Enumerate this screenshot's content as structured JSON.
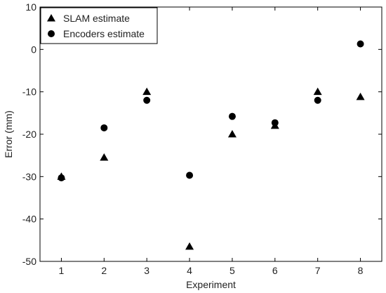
{
  "chart_data": {
    "type": "scatter",
    "title": "",
    "xlabel": "Experiment",
    "ylabel": "Error (mm)",
    "xlim": [
      0.5,
      8.5
    ],
    "ylim": [
      -50,
      10
    ],
    "xticks": [
      1,
      2,
      3,
      4,
      5,
      6,
      7,
      8
    ],
    "yticks": [
      10,
      0,
      -10,
      -20,
      -30,
      -40,
      -50
    ],
    "grid": false,
    "legend": "top-left",
    "series": [
      {
        "name": "SLAM estimate",
        "marker": "triangle",
        "color": "#000000",
        "x": [
          1,
          2,
          3,
          4,
          5,
          6,
          7,
          8
        ],
        "y": [
          -30.0,
          -25.5,
          -10.0,
          -46.5,
          -20.0,
          -18.0,
          -10.0,
          -11.2
        ]
      },
      {
        "name": "Encoders estimate",
        "marker": "circle",
        "color": "#000000",
        "x": [
          1,
          2,
          3,
          4,
          5,
          6,
          7,
          8
        ],
        "y": [
          -30.3,
          -18.5,
          -12.0,
          -29.7,
          -15.8,
          -17.3,
          -12.0,
          1.3
        ]
      }
    ]
  }
}
